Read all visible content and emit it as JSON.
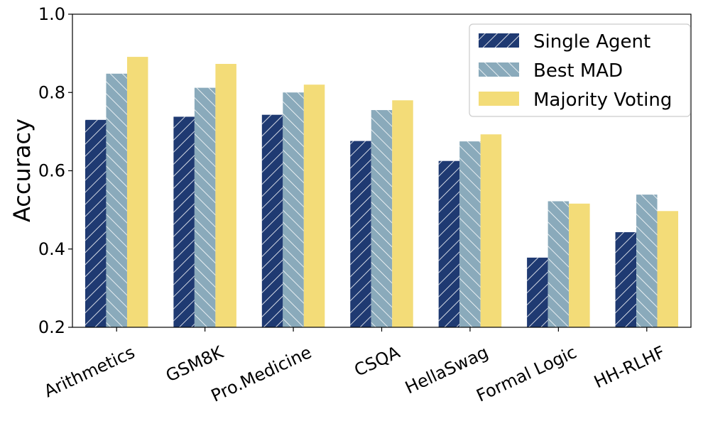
{
  "chart_data": {
    "type": "bar",
    "title": "",
    "xlabel": "",
    "ylabel": "Accuracy",
    "ylim": [
      0.2,
      1.0
    ],
    "yticks": [
      0.2,
      0.4,
      0.6,
      0.8,
      1.0
    ],
    "ytick_labels": [
      "0.2",
      "0.4",
      "0.6",
      "0.8",
      "1.0"
    ],
    "categories": [
      "Arithmetics",
      "GSM8K",
      "Pro.Medicine",
      "CSQA",
      "HellaSwag",
      "Formal Logic",
      "HH-RLHF"
    ],
    "series": [
      {
        "name": "Single Agent",
        "color": "#1f3a72",
        "hatch": "forward-diagonal",
        "values": [
          0.73,
          0.738,
          0.743,
          0.676,
          0.625,
          0.378,
          0.443
        ]
      },
      {
        "name": "Best MAD",
        "color": "#8aaabb",
        "hatch": "back-diagonal",
        "values": [
          0.848,
          0.812,
          0.8,
          0.755,
          0.675,
          0.522,
          0.539
        ]
      },
      {
        "name": "Majority Voting",
        "color": "#f3dc78",
        "hatch": "none",
        "values": [
          0.891,
          0.873,
          0.82,
          0.78,
          0.693,
          0.516,
          0.497
        ]
      }
    ],
    "legend_position": "top-right",
    "grid": false
  }
}
